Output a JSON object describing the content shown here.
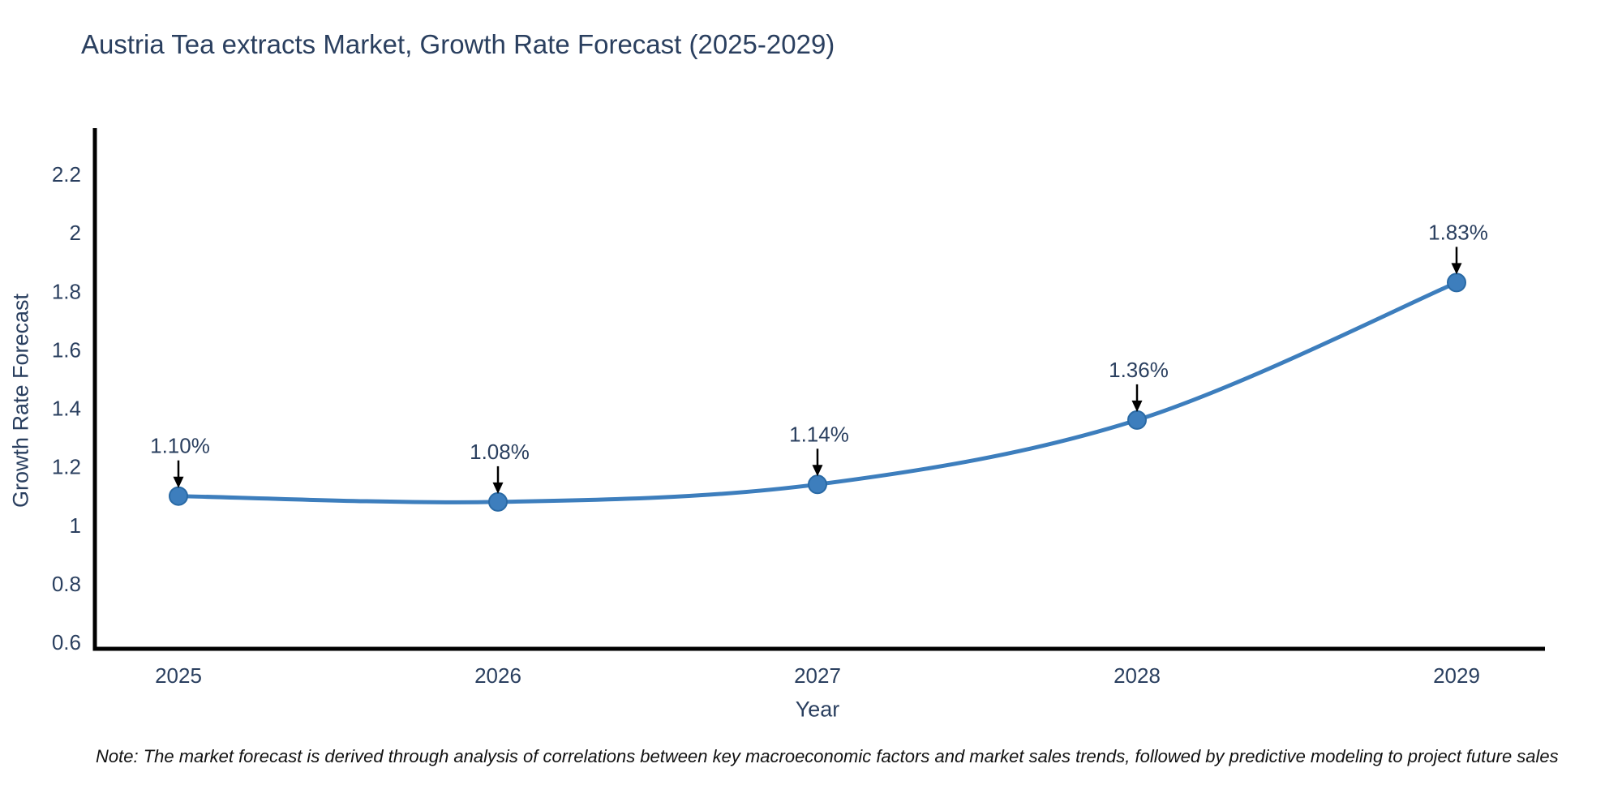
{
  "note": {
    "text": "Note: The market forecast is derived through analysis of correlations between key macroeconomic factors and market sales trends, followed by predictive modeling to project future sales"
  },
  "chart_data": {
    "type": "line",
    "title": "Austria Tea extracts Market, Growth Rate Forecast (2025-2029)",
    "xlabel": "Year",
    "ylabel": "Growth Rate Forecast",
    "x": [
      2025,
      2026,
      2027,
      2028,
      2029
    ],
    "values": [
      1.1,
      1.08,
      1.14,
      1.36,
      1.83
    ],
    "point_labels": [
      "1.10%",
      "1.08%",
      "1.14%",
      "1.36%",
      "1.83%"
    ],
    "xtick_labels": [
      "2025",
      "2026",
      "2027",
      "2028",
      "2029"
    ],
    "yticks": [
      0.6,
      0.8,
      1,
      1.2,
      1.4,
      1.6,
      1.8,
      2,
      2.2
    ],
    "ytick_labels": [
      "0.6",
      "0.8",
      "1",
      "1.2",
      "1.4",
      "1.6",
      "1.8",
      "2",
      "2.2"
    ],
    "ylim": [
      0.58,
      2.32
    ],
    "grid": false,
    "legend": "none",
    "line_color": "#3d7ebd",
    "marker_color": "#3d7ebd",
    "marker_edge_color": "#2a6aa5",
    "axis_color": "#000000",
    "arrow_color": "#000000",
    "text_color": "#2a3f5f"
  }
}
